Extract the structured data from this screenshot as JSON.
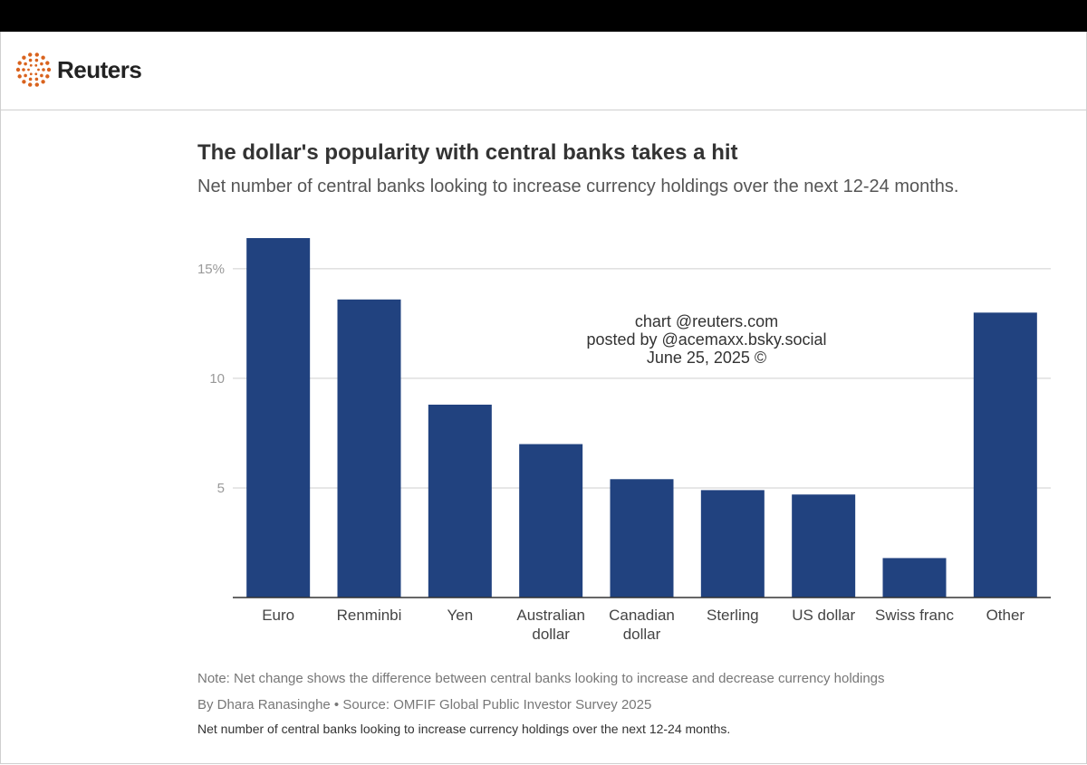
{
  "brand": {
    "name": "Reuters",
    "logo_icon": "reuters-dot-ring-icon",
    "accent": "#d9631e"
  },
  "title": "The dollar's popularity with central banks takes a hit",
  "subtitle": "Net number of central banks looking to increase currency holdings over the next 12-24 months.",
  "watermark": {
    "line1": "chart @reuters.com",
    "line2": "posted by @acemaxx.bsky.social",
    "line3": "June 25, 2025 ©"
  },
  "note": "Note: Net change shows the difference between central banks looking to increase and decrease currency holdings",
  "byline": "By Dhara Ranasinghe  • Source: OMFIF Global Public Investor Survey 2025",
  "footer_description": "Net number of central banks looking to increase currency holdings over the next 12-24 months.",
  "chart_data": {
    "type": "bar",
    "categories": [
      "Euro",
      "Renminbi",
      "Yen",
      "Australian dollar",
      "Canadian dollar",
      "Sterling",
      "US dollar",
      "Swiss franc",
      "Other"
    ],
    "category_lines": [
      [
        "Euro"
      ],
      [
        "Renminbi"
      ],
      [
        "Yen"
      ],
      [
        "Australian",
        "dollar"
      ],
      [
        "Canadian",
        "dollar"
      ],
      [
        "Sterling"
      ],
      [
        "US dollar"
      ],
      [
        "Swiss franc"
      ],
      [
        "Other"
      ]
    ],
    "values": [
      16.4,
      13.6,
      8.8,
      7.0,
      5.4,
      4.9,
      4.7,
      1.8,
      13.0
    ],
    "title": "The dollar's popularity with central banks takes a hit",
    "subtitle": "Net number of central banks looking to increase currency holdings over the next 12-24 months.",
    "xlabel": "",
    "ylabel": "",
    "ylim": [
      0,
      16.4
    ],
    "yticks": [
      {
        "value": 5,
        "label": "5"
      },
      {
        "value": 10,
        "label": "10"
      },
      {
        "value": 15,
        "label": "15%"
      }
    ],
    "grid": true,
    "legend": "none",
    "bar_color": "#21427f"
  }
}
